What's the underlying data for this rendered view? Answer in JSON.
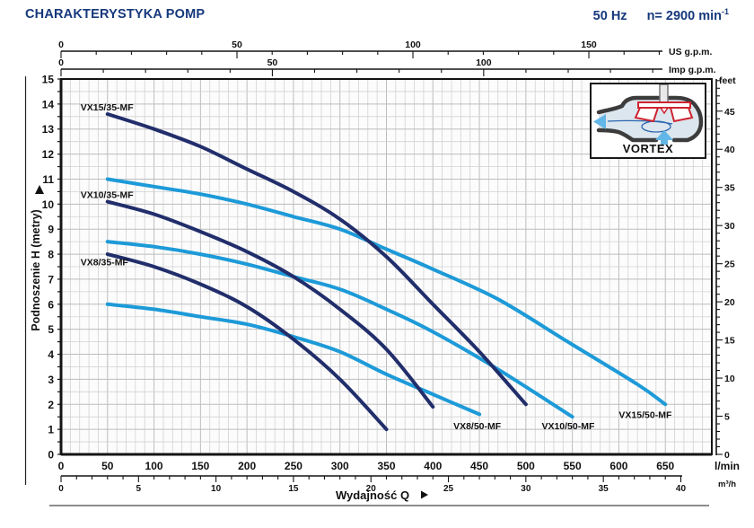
{
  "header": {
    "title": "CHARAKTERYSTYKA POMP",
    "frequency": "50 Hz",
    "speed_prefix": "n= 2900 min",
    "speed_exponent": "-1"
  },
  "inset": {
    "label": "VORTEX"
  },
  "chart_data": {
    "type": "line",
    "xlabel": "Wydajność Q",
    "ylabel": "Podnoszenie H  (metry)",
    "units": {
      "x_primary": "l/min",
      "x_secondary": "m³/h",
      "x_top1": "US g.p.m.",
      "x_top2": "Imp g.p.m.",
      "y_right": "feet"
    },
    "xlim_lmin": [
      0,
      700
    ],
    "ylim_m": [
      0,
      15
    ],
    "grid": "on",
    "y_ticks_m": [
      0,
      1,
      2,
      3,
      4,
      5,
      6,
      7,
      8,
      9,
      10,
      11,
      12,
      13,
      14,
      15
    ],
    "axis_lmin": {
      "major": [
        0,
        50,
        100,
        150,
        200,
        250,
        300,
        350,
        400,
        450,
        500,
        550,
        600,
        650
      ]
    },
    "axis_m3h": {
      "major": [
        0,
        5,
        10,
        15,
        20,
        25,
        30,
        35,
        40
      ],
      "lmin_per_unit": 16.6667
    },
    "axis_usgpm": {
      "major": [
        0,
        50,
        100,
        150
      ],
      "lmin_per_unit": 3.785
    },
    "axis_impgpm": {
      "major": [
        0,
        50,
        100
      ],
      "lmin_per_unit": 4.546
    },
    "axis_feet": {
      "major": [
        0,
        5,
        10,
        15,
        20,
        25,
        30,
        35,
        40,
        45
      ],
      "m_per_unit": 0.3048
    },
    "colors": {
      "navy": "#212e6b",
      "lightblue": "#1d9ad8"
    },
    "series": [
      {
        "name": "VX15/50-MF",
        "color": "lightblue",
        "label_anchor": [
          600,
          1.45
        ],
        "points": [
          [
            50,
            11.0
          ],
          [
            100,
            10.7
          ],
          [
            150,
            10.4
          ],
          [
            200,
            10.0
          ],
          [
            250,
            9.5
          ],
          [
            300,
            9.0
          ],
          [
            350,
            8.2
          ],
          [
            400,
            7.4
          ],
          [
            470,
            6.2
          ],
          [
            545,
            4.5
          ],
          [
            620,
            2.8
          ],
          [
            650,
            2.0
          ]
        ]
      },
      {
        "name": "VX10/50-MF",
        "color": "lightblue",
        "label_anchor": [
          517,
          1.0
        ],
        "points": [
          [
            50,
            8.5
          ],
          [
            100,
            8.3
          ],
          [
            150,
            8.0
          ],
          [
            200,
            7.6
          ],
          [
            250,
            7.1
          ],
          [
            300,
            6.6
          ],
          [
            350,
            5.8
          ],
          [
            400,
            4.9
          ],
          [
            470,
            3.4
          ],
          [
            550,
            1.5
          ]
        ]
      },
      {
        "name": "VX8/50-MF",
        "color": "lightblue",
        "label_anchor": [
          422,
          1.0
        ],
        "points": [
          [
            50,
            6.0
          ],
          [
            100,
            5.8
          ],
          [
            150,
            5.5
          ],
          [
            200,
            5.2
          ],
          [
            250,
            4.7
          ],
          [
            300,
            4.1
          ],
          [
            350,
            3.2
          ],
          [
            400,
            2.4
          ],
          [
            450,
            1.6
          ]
        ]
      },
      {
        "name": "VX15/35-MF",
        "color": "navy",
        "label_anchor": [
          21,
          13.75
        ],
        "points": [
          [
            50,
            13.6
          ],
          [
            100,
            13.0
          ],
          [
            150,
            12.3
          ],
          [
            200,
            11.4
          ],
          [
            250,
            10.5
          ],
          [
            300,
            9.4
          ],
          [
            350,
            7.9
          ],
          [
            400,
            6.0
          ],
          [
            450,
            4.1
          ],
          [
            500,
            2.0
          ]
        ]
      },
      {
        "name": "VX10/35-MF",
        "color": "navy",
        "label_anchor": [
          21,
          10.25
        ],
        "points": [
          [
            50,
            10.1
          ],
          [
            100,
            9.6
          ],
          [
            150,
            8.9
          ],
          [
            200,
            8.1
          ],
          [
            250,
            7.1
          ],
          [
            300,
            5.8
          ],
          [
            350,
            4.2
          ],
          [
            400,
            1.9
          ]
        ]
      },
      {
        "name": "VX8/35-MF",
        "color": "navy",
        "label_anchor": [
          21,
          7.55
        ],
        "points": [
          [
            50,
            8.0
          ],
          [
            100,
            7.5
          ],
          [
            150,
            6.8
          ],
          [
            200,
            5.9
          ],
          [
            250,
            4.6
          ],
          [
            300,
            3.0
          ],
          [
            350,
            1.0
          ]
        ]
      }
    ]
  }
}
